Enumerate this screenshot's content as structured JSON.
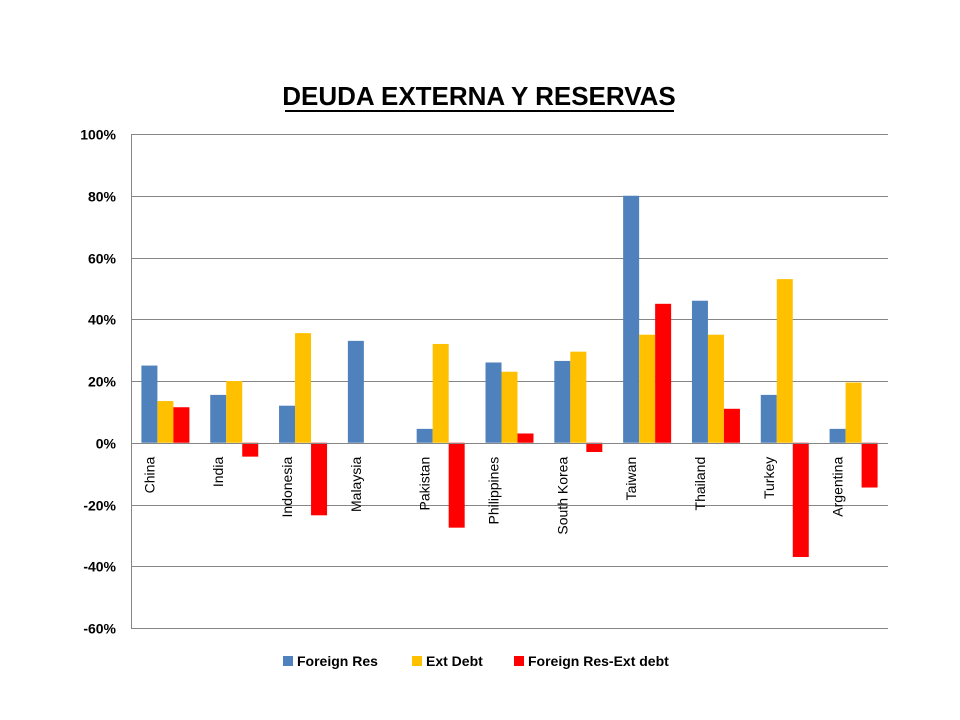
{
  "chart_data": {
    "type": "bar",
    "title": "DEUDA EXTERNA Y RESERVAS",
    "xlabel": "",
    "ylabel": "",
    "ylim": [
      -60,
      100
    ],
    "y_ticks": [
      "100%",
      "80%",
      "60%",
      "40%",
      "20%",
      "0%",
      "-20%",
      "-40%",
      "-60%"
    ],
    "y_tick_values": [
      100,
      80,
      60,
      40,
      20,
      0,
      -20,
      -40,
      -60
    ],
    "grid": true,
    "legend_position": "bottom",
    "categories": [
      "China",
      "India",
      "Indonesia",
      "Malaysia",
      "Pakistan",
      "Philippines",
      "South Korea",
      "Taiwan",
      "Thailand",
      "Turkey",
      "Argentina"
    ],
    "series": [
      {
        "name": "Foreign Res",
        "color": "#4f81bd",
        "values": [
          25,
          15.5,
          12,
          33,
          4.5,
          26,
          26.5,
          80,
          46,
          15.5,
          4.5
        ]
      },
      {
        "name": "Ext Debt",
        "color": "#ffc000",
        "values": [
          13.5,
          20,
          35.5,
          null,
          32,
          23,
          29.5,
          35,
          35,
          53,
          19.5
        ]
      },
      {
        "name": "Foreign Res-Ext debt",
        "color": "#ff0000",
        "values": [
          11.5,
          -4.5,
          -23.5,
          null,
          -27.5,
          3,
          -3,
          45,
          11,
          -37,
          -14.5
        ]
      }
    ]
  }
}
